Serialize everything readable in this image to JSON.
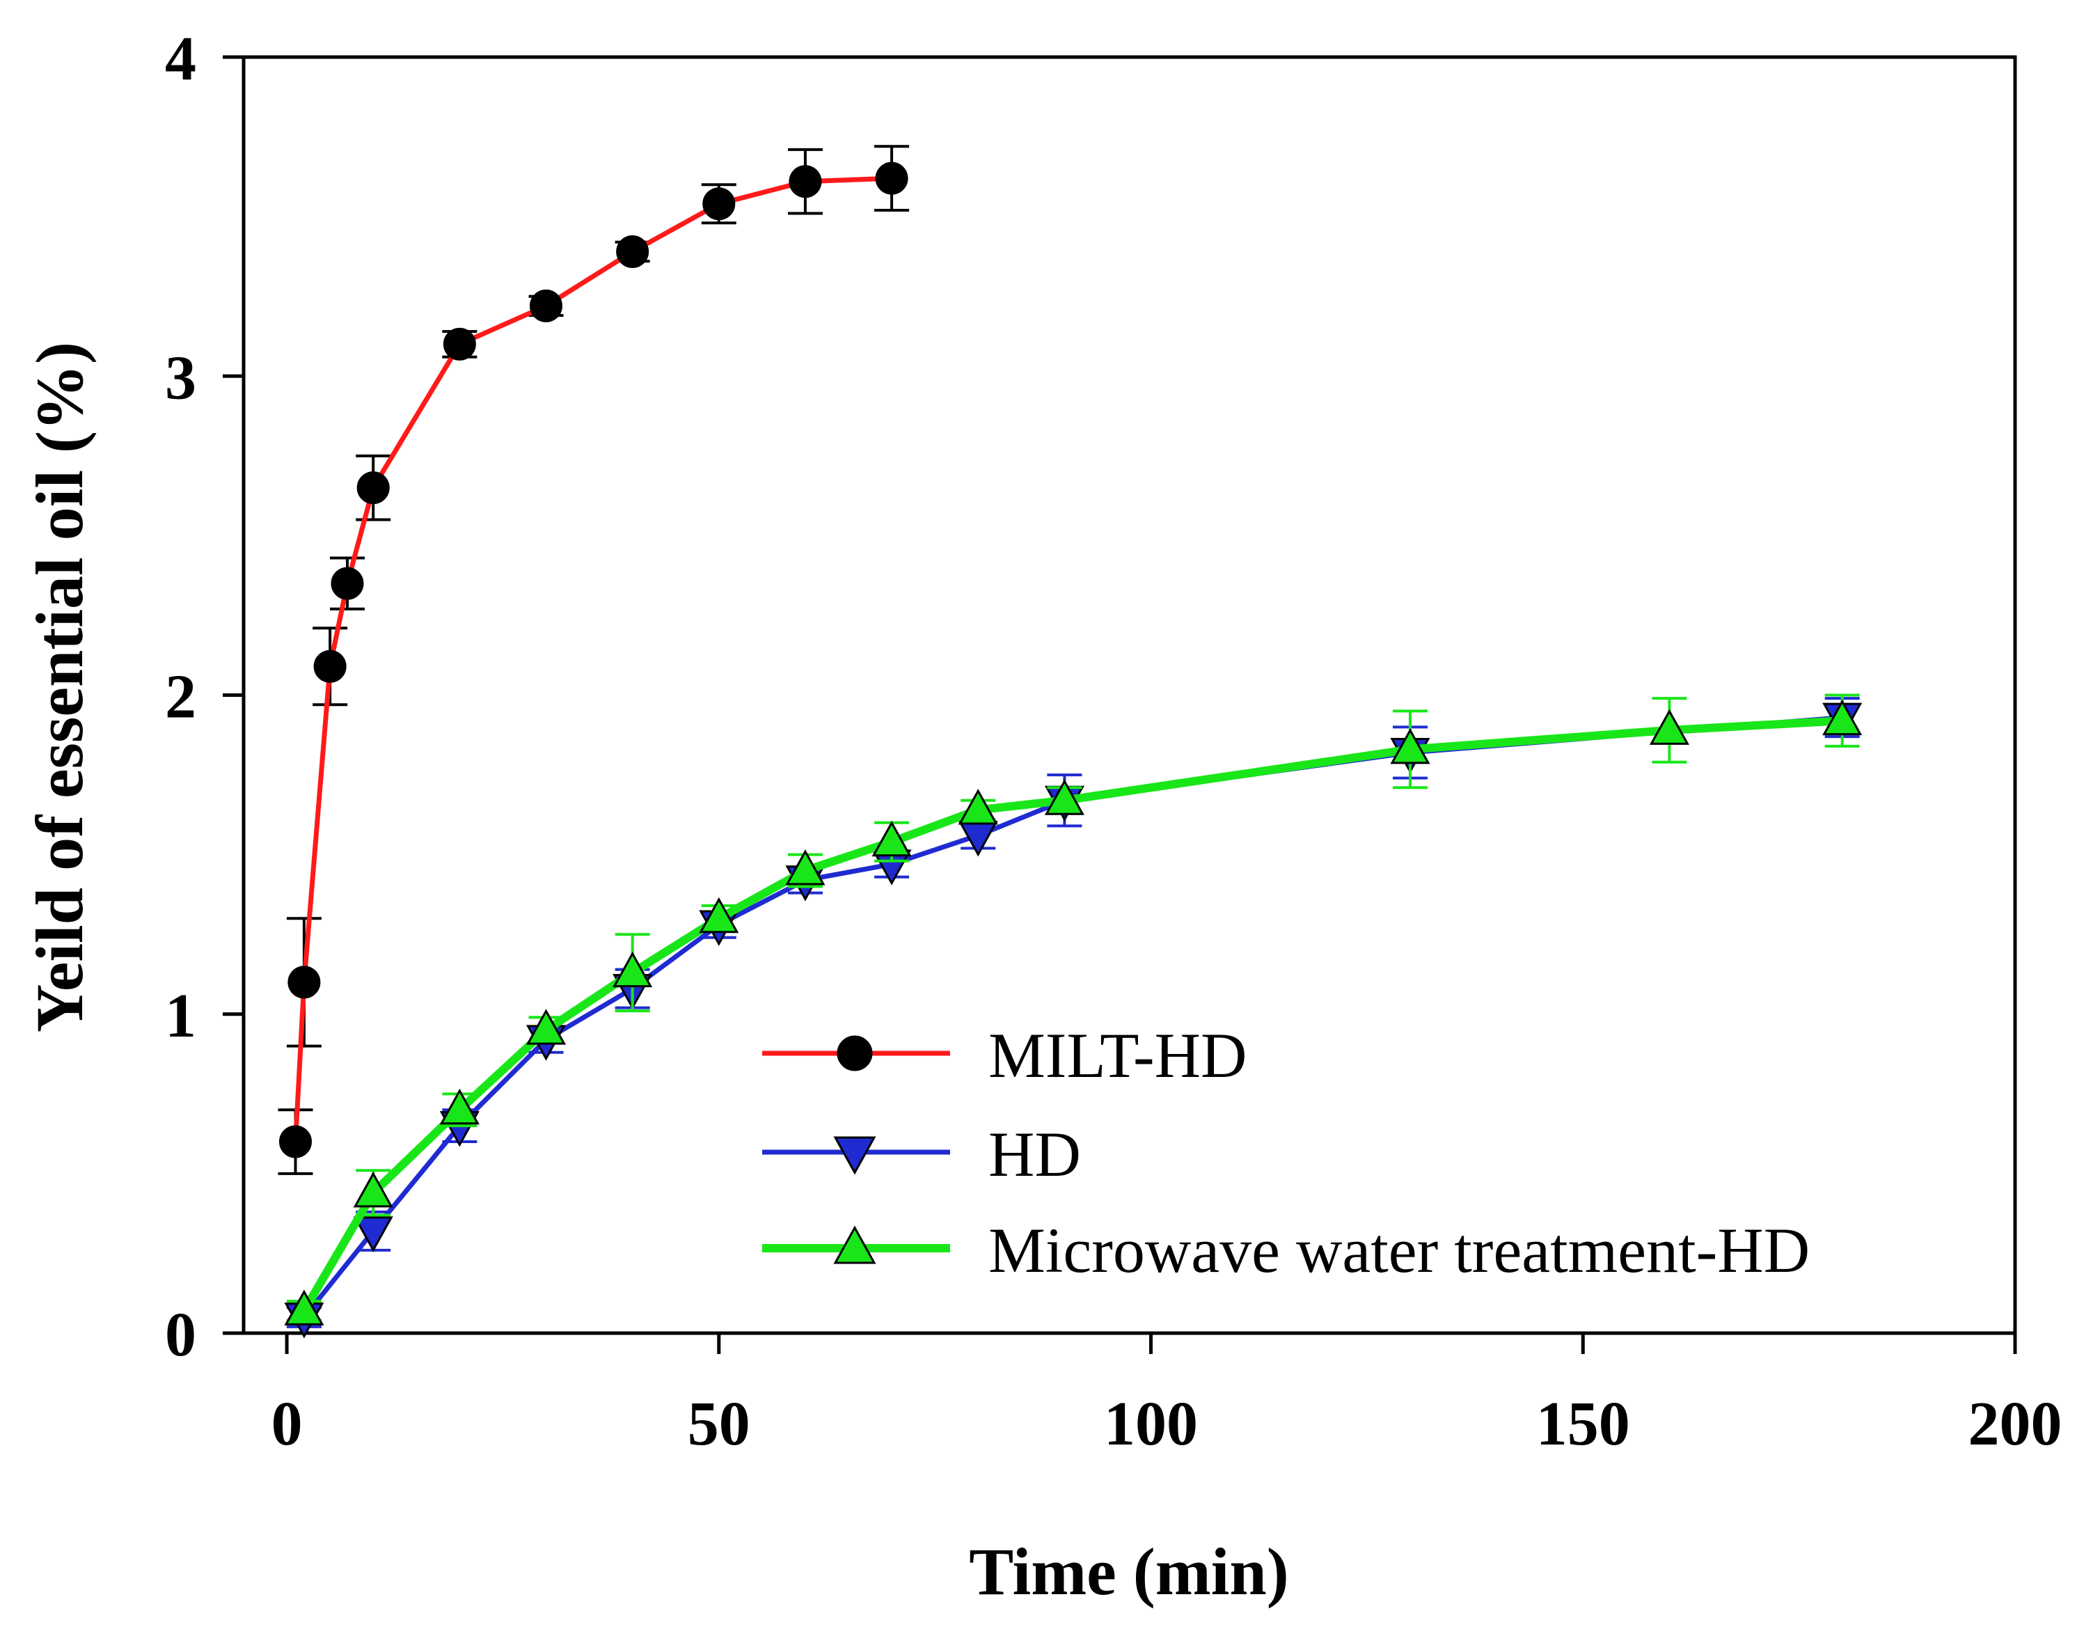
{
  "chart_data": {
    "type": "line",
    "title": "",
    "xlabel": "Time (min)",
    "ylabel": "Yeild of essential oil (%)",
    "xlim": [
      -5,
      200
    ],
    "ylim": [
      0,
      4
    ],
    "xticks": [
      0,
      50,
      100,
      150,
      200
    ],
    "xtick_labels": [
      "0",
      "50",
      "100",
      "150",
      "200"
    ],
    "yticks": [
      0,
      1,
      2,
      3,
      4
    ],
    "ytick_labels": [
      "0",
      "1",
      "2",
      "3",
      "4"
    ],
    "grid": false,
    "legend_position": "bottom-right",
    "series": [
      {
        "name": "MILT-HD",
        "color": "#ff1a1a",
        "marker": "circle",
        "marker_color": "#000000",
        "points": [
          {
            "x": 1,
            "y": 0.6,
            "err": 0.1
          },
          {
            "x": 2,
            "y": 1.1,
            "err": 0.2
          },
          {
            "x": 5,
            "y": 2.09,
            "err": 0.12
          },
          {
            "x": 7,
            "y": 2.35,
            "err": 0.08
          },
          {
            "x": 10,
            "y": 2.65,
            "err": 0.1
          },
          {
            "x": 20,
            "y": 3.1,
            "err": 0.04
          },
          {
            "x": 30,
            "y": 3.22,
            "err": 0.03
          },
          {
            "x": 40,
            "y": 3.39,
            "err": 0.03
          },
          {
            "x": 50,
            "y": 3.54,
            "err": 0.06
          },
          {
            "x": 60,
            "y": 3.61,
            "err": 0.1
          },
          {
            "x": 70,
            "y": 3.62,
            "err": 0.1
          }
        ]
      },
      {
        "name": "HD",
        "color": "#1f2bd1",
        "marker": "triangle-down",
        "marker_color": "#1f2bd1",
        "points": [
          {
            "x": 2,
            "y": 0.05,
            "err": 0.03
          },
          {
            "x": 10,
            "y": 0.32,
            "err": 0.06
          },
          {
            "x": 20,
            "y": 0.65,
            "err": 0.05
          },
          {
            "x": 30,
            "y": 0.92,
            "err": 0.04
          },
          {
            "x": 40,
            "y": 1.08,
            "err": 0.06
          },
          {
            "x": 50,
            "y": 1.28,
            "err": 0.04
          },
          {
            "x": 60,
            "y": 1.42,
            "err": 0.04
          },
          {
            "x": 70,
            "y": 1.47,
            "err": 0.04
          },
          {
            "x": 80,
            "y": 1.56,
            "err": 0.04
          },
          {
            "x": 90,
            "y": 1.67,
            "err": 0.08
          },
          {
            "x": 130,
            "y": 1.82,
            "err": 0.08
          },
          {
            "x": 180,
            "y": 1.93,
            "err": 0.06
          }
        ]
      },
      {
        "name": "Microwave water treatment-HD",
        "color": "#19e619",
        "marker": "triangle-up",
        "marker_color": "#19e619",
        "points": [
          {
            "x": 2,
            "y": 0.07,
            "err": 0.03
          },
          {
            "x": 10,
            "y": 0.44,
            "err": 0.07
          },
          {
            "x": 20,
            "y": 0.7,
            "err": 0.05
          },
          {
            "x": 30,
            "y": 0.95,
            "err": 0.04
          },
          {
            "x": 40,
            "y": 1.13,
            "err": 0.12
          },
          {
            "x": 50,
            "y": 1.3,
            "err": 0.04
          },
          {
            "x": 60,
            "y": 1.45,
            "err": 0.05
          },
          {
            "x": 70,
            "y": 1.54,
            "err": 0.06
          },
          {
            "x": 80,
            "y": 1.64,
            "err": 0.03
          },
          {
            "x": 90,
            "y": 1.67,
            "err": 0.04
          },
          {
            "x": 130,
            "y": 1.83,
            "err": 0.12
          },
          {
            "x": 160,
            "y": 1.89,
            "err": 0.1
          },
          {
            "x": 180,
            "y": 1.92,
            "err": 0.08
          }
        ]
      }
    ]
  }
}
